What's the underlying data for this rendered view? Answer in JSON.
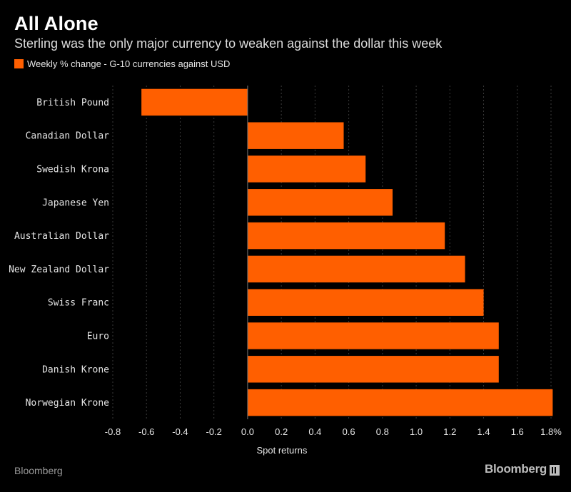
{
  "header": {
    "title": "All Alone",
    "subtitle": "Sterling was the only major currency to weaken against the dollar this week",
    "legend_label": "Weekly % change - G-10 currencies against USD"
  },
  "footer": {
    "source": "Bloomberg",
    "brand": "Bloomberg"
  },
  "colors": {
    "bar": "#ff5f00",
    "background": "#000000",
    "grid": "#3a3a3a"
  },
  "chart_data": {
    "type": "bar",
    "orientation": "horizontal",
    "categories": [
      "British Pound",
      "Canadian Dollar",
      "Swedish Krona",
      "Japanese Yen",
      "Australian Dollar",
      "New Zealand Dollar",
      "Swiss Franc",
      "Euro",
      "Danish Krone",
      "Norwegian Krone"
    ],
    "values": [
      -0.63,
      0.57,
      0.7,
      0.86,
      1.17,
      1.29,
      1.4,
      1.49,
      1.49,
      1.81
    ],
    "xlabel": "Spot returns",
    "xlim": [
      -0.8,
      1.8
    ],
    "xticks": [
      -0.8,
      -0.6,
      -0.4,
      -0.2,
      0.0,
      0.2,
      0.4,
      0.6,
      0.8,
      1.0,
      1.2,
      1.4,
      1.6,
      1.8
    ],
    "xtick_labels": [
      "-0.8",
      "-0.6",
      "-0.4",
      "-0.2",
      "0.0",
      "0.2",
      "0.4",
      "0.6",
      "0.8",
      "1.0",
      "1.2",
      "1.4",
      "1.6",
      "1.8%"
    ],
    "grid": true,
    "legend": "top-left"
  }
}
